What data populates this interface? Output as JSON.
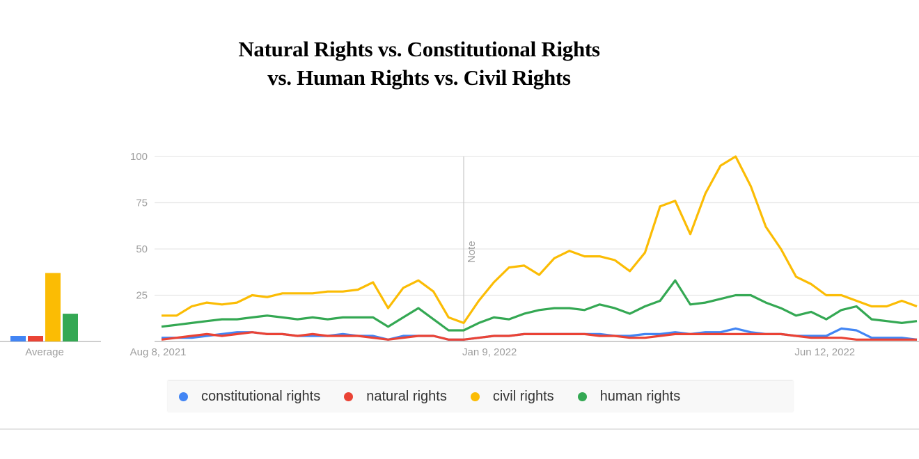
{
  "title_line1": "Natural Rights vs. Constitutional Rights",
  "title_line2": "vs. Human Rights vs. Civil Rights",
  "chart_data": [
    {
      "type": "bar",
      "categories": [
        "Average"
      ],
      "series": [
        {
          "name": "constitutional rights",
          "values": [
            3
          ],
          "color": "#4285f4"
        },
        {
          "name": "natural rights",
          "values": [
            3
          ],
          "color": "#ea4335"
        },
        {
          "name": "civil rights",
          "values": [
            37
          ],
          "color": "#fbbc04"
        },
        {
          "name": "human rights",
          "values": [
            15
          ],
          "color": "#34a853"
        }
      ],
      "ylim": [
        0,
        100
      ]
    },
    {
      "type": "line",
      "ylim": [
        0,
        100
      ],
      "yticks": [
        "100",
        "75",
        "50",
        "25"
      ],
      "xticks": [
        {
          "label": "Aug 8, 2021",
          "date": "2021-08-08"
        },
        {
          "label": "Jan 9, 2022",
          "date": "2022-01-09"
        },
        {
          "label": "Jun 12, 2022",
          "date": "2022-06-12"
        }
      ],
      "grid": true,
      "legend_position": "bottom",
      "annotation": {
        "label": "Note",
        "date": "2022-01-09"
      },
      "x": [
        "2021-08-22",
        "2021-08-29",
        "2021-09-05",
        "2021-09-12",
        "2021-09-19",
        "2021-09-26",
        "2021-10-03",
        "2021-10-10",
        "2021-10-17",
        "2021-10-24",
        "2021-10-31",
        "2021-11-07",
        "2021-11-14",
        "2021-11-21",
        "2021-11-28",
        "2021-12-05",
        "2021-12-12",
        "2021-12-19",
        "2021-12-26",
        "2022-01-02",
        "2022-01-09",
        "2022-01-16",
        "2022-01-23",
        "2022-01-30",
        "2022-02-06",
        "2022-02-13",
        "2022-02-20",
        "2022-02-27",
        "2022-03-06",
        "2022-03-13",
        "2022-03-20",
        "2022-03-27",
        "2022-04-03",
        "2022-04-10",
        "2022-04-17",
        "2022-04-24",
        "2022-05-01",
        "2022-05-08",
        "2022-05-15",
        "2022-05-22",
        "2022-05-29",
        "2022-06-05",
        "2022-06-12",
        "2022-06-19",
        "2022-06-26",
        "2022-07-03",
        "2022-07-10",
        "2022-07-17",
        "2022-07-24",
        "2022-07-31",
        "2022-08-07"
      ],
      "series": [
        {
          "name": "constitutional rights",
          "color": "#4285f4",
          "values": [
            2,
            2,
            2,
            3,
            4,
            5,
            5,
            4,
            4,
            3,
            3,
            3,
            4,
            3,
            3,
            1,
            3,
            3,
            3,
            1,
            1,
            2,
            3,
            3,
            4,
            4,
            4,
            4,
            4,
            4,
            3,
            3,
            4,
            4,
            5,
            4,
            5,
            5,
            7,
            5,
            4,
            4,
            3,
            3,
            3,
            7,
            6,
            2,
            2,
            2,
            1
          ]
        },
        {
          "name": "natural rights",
          "color": "#ea4335",
          "values": [
            1,
            2,
            3,
            4,
            3,
            4,
            5,
            4,
            4,
            3,
            4,
            3,
            3,
            3,
            2,
            1,
            2,
            3,
            3,
            1,
            1,
            2,
            3,
            3,
            4,
            4,
            4,
            4,
            4,
            3,
            3,
            2,
            2,
            3,
            4,
            4,
            4,
            4,
            4,
            4,
            4,
            4,
            3,
            2,
            2,
            2,
            1,
            1,
            1,
            1,
            1
          ]
        },
        {
          "name": "civil rights",
          "color": "#fbbc04",
          "values": [
            14,
            14,
            19,
            21,
            20,
            21,
            25,
            24,
            26,
            26,
            26,
            27,
            27,
            28,
            32,
            18,
            29,
            33,
            27,
            13,
            10,
            22,
            32,
            40,
            41,
            36,
            45,
            49,
            46,
            46,
            44,
            38,
            48,
            73,
            76,
            58,
            80,
            95,
            100,
            84,
            62,
            50,
            35,
            31,
            25,
            25,
            22,
            19,
            19,
            22,
            19
          ]
        },
        {
          "name": "human rights",
          "color": "#34a853",
          "values": [
            8,
            9,
            10,
            11,
            12,
            12,
            13,
            14,
            13,
            12,
            13,
            12,
            13,
            13,
            13,
            8,
            13,
            18,
            12,
            6,
            6,
            10,
            13,
            12,
            15,
            17,
            18,
            18,
            17,
            20,
            18,
            15,
            19,
            22,
            33,
            20,
            21,
            23,
            25,
            25,
            21,
            18,
            14,
            16,
            12,
            17,
            19,
            12,
            11,
            10,
            11
          ]
        }
      ]
    }
  ]
}
